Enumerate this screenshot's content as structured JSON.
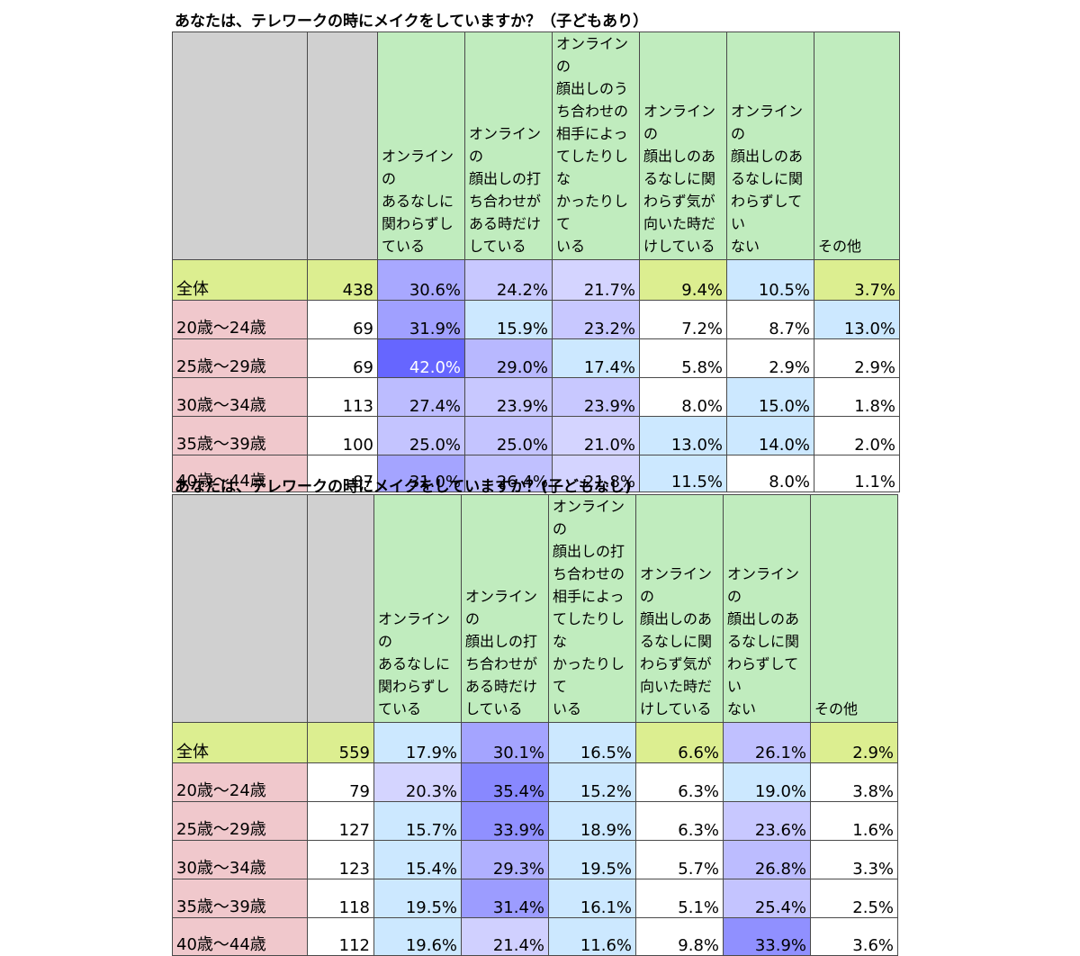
{
  "chart_data": [
    {
      "type": "table",
      "title": "あなたは、テレワークの時にメイクをしていますか？（子どもあり）",
      "columns": [
        "オンラインのあるなしに関わらずしている",
        "オンラインの顔出しの打ち合わせがある時だけしている",
        "オンラインの顔出しのうち合わせの相手によってしたりしなかったりしている",
        "オンラインの顔出しのあるなしに関わらず気が向いた時だけしている",
        "オンラインの顔出しのあるなしに関わらずしていない",
        "その他"
      ],
      "rows": [
        {
          "label": "全体",
          "n": "438",
          "values": [
            "30.6%",
            "24.2%",
            "21.7%",
            "9.4%",
            "10.5%",
            "3.7%"
          ],
          "colors": [
            "#a8a8ff",
            "#c8c8ff",
            "#d4d4ff",
            "#dcee90",
            "#cce8ff",
            "#dcee90"
          ]
        },
        {
          "label": "20歳～24歳",
          "n": "69",
          "values": [
            "31.9%",
            "15.9%",
            "23.2%",
            "7.2%",
            "8.7%",
            "13.0%"
          ],
          "colors": [
            "#a0a0ff",
            "#cce8ff",
            "#c8c8ff",
            "#ffffff",
            "#ffffff",
            "#cce8ff"
          ]
        },
        {
          "label": "25歳～29歳",
          "n": "69",
          "values": [
            "42.0%",
            "29.0%",
            "17.4%",
            "5.8%",
            "2.9%",
            "2.9%"
          ],
          "colors": [
            "#6666ff",
            "#b8b8ff",
            "#cce8ff",
            "#ffffff",
            "#ffffff",
            "#ffffff"
          ]
        },
        {
          "label": "30歳～34歳",
          "n": "113",
          "values": [
            "27.4%",
            "23.9%",
            "23.9%",
            "8.0%",
            "15.0%",
            "1.8%"
          ],
          "colors": [
            "#bcbcff",
            "#c8c8ff",
            "#c8c8ff",
            "#ffffff",
            "#cce8ff",
            "#ffffff"
          ]
        },
        {
          "label": "35歳～39歳",
          "n": "100",
          "values": [
            "25.0%",
            "25.0%",
            "21.0%",
            "13.0%",
            "14.0%",
            "2.0%"
          ],
          "colors": [
            "#c4c4ff",
            "#c4c4ff",
            "#d4d4ff",
            "#cce8ff",
            "#cce8ff",
            "#ffffff"
          ]
        },
        {
          "label": "40歳～44歳",
          "n": "87",
          "values": [
            "31.0%",
            "26.4%",
            "21.8%",
            "11.5%",
            "8.0%",
            "1.1%"
          ],
          "colors": [
            "#a4a4ff",
            "#c0c0ff",
            "#d4d4ff",
            "#cce8ff",
            "#ffffff",
            "#ffffff"
          ]
        }
      ]
    },
    {
      "type": "table",
      "title": "あなたは、テレワークの時にメイクをしていますか？(子どもなし)",
      "columns": [
        "オンラインのあるなしに関わらずしている",
        "オンラインの顔出しの打ち合わせがある時だけしている",
        "オンラインの顔出しの打ち合わせの相手によってしたりしなかったりしている",
        "オンラインの顔出しのあるなしに関わらず気が向いた時だけしている",
        "オンラインの顔出しのあるなしに関わらずしていない",
        "その他"
      ],
      "rows": [
        {
          "label": "全体",
          "n": "559",
          "values": [
            "17.9%",
            "30.1%",
            "16.5%",
            "6.6%",
            "26.1%",
            "2.9%"
          ],
          "colors": [
            "#cce8ff",
            "#a4a4ff",
            "#cce8ff",
            "#dcee90",
            "#c0c0ff",
            "#dcee90"
          ]
        },
        {
          "label": "20歳～24歳",
          "n": "79",
          "values": [
            "20.3%",
            "35.4%",
            "15.2%",
            "6.3%",
            "19.0%",
            "3.8%"
          ],
          "colors": [
            "#d4d4ff",
            "#8888ff",
            "#cce8ff",
            "#ffffff",
            "#cce8ff",
            "#ffffff"
          ]
        },
        {
          "label": "25歳～29歳",
          "n": "127",
          "values": [
            "15.7%",
            "33.9%",
            "18.9%",
            "6.3%",
            "23.6%",
            "1.6%"
          ],
          "colors": [
            "#cce8ff",
            "#9090ff",
            "#cce8ff",
            "#ffffff",
            "#c8c8ff",
            "#ffffff"
          ]
        },
        {
          "label": "30歳～34歳",
          "n": "123",
          "values": [
            "15.4%",
            "29.3%",
            "19.5%",
            "5.7%",
            "26.8%",
            "3.3%"
          ],
          "colors": [
            "#cce8ff",
            "#b0b0ff",
            "#cce8ff",
            "#ffffff",
            "#bcbcff",
            "#ffffff"
          ]
        },
        {
          "label": "35歳～39歳",
          "n": "118",
          "values": [
            "19.5%",
            "31.4%",
            "16.1%",
            "5.1%",
            "25.4%",
            "2.5%"
          ],
          "colors": [
            "#cce8ff",
            "#9c9cff",
            "#cce8ff",
            "#ffffff",
            "#c4c4ff",
            "#ffffff"
          ]
        },
        {
          "label": "40歳～44歳",
          "n": "112",
          "values": [
            "19.6%",
            "21.4%",
            "11.6%",
            "9.8%",
            "33.9%",
            "3.6%"
          ],
          "colors": [
            "#cce8ff",
            "#d0d0ff",
            "#cce8ff",
            "#ffffff",
            "#9090ff",
            "#ffffff"
          ]
        }
      ]
    }
  ]
}
